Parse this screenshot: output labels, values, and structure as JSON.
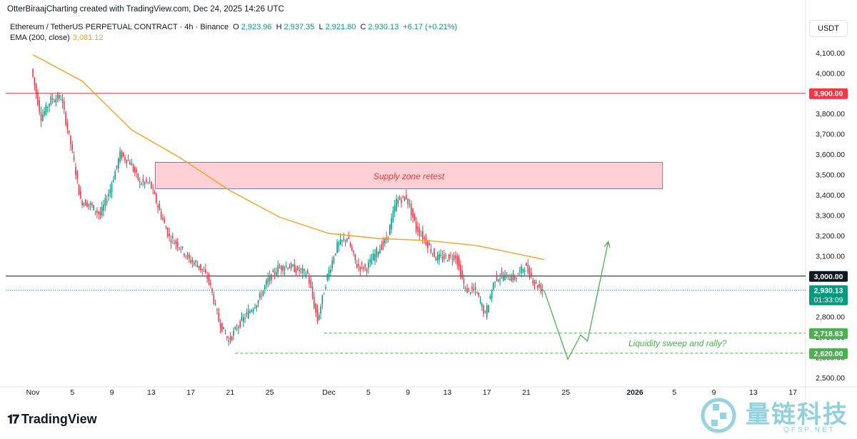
{
  "header": {
    "credit": "OtterBiraajCharting created with TradingView.com, Dec 24, 2025 14:26 UTC"
  },
  "legend": {
    "symbol": "Ethereum / TetherUS PERPETUAL CONTRACT · 4h · Binance",
    "open_label": "O",
    "open": "2,923.96",
    "high_label": "H",
    "high": "2,937.35",
    "low_label": "L",
    "low": "2,921.80",
    "close_label": "C",
    "close": "2,930.13",
    "change": "+6.17 (+0.21%)",
    "ema_label": "EMA (200, close)",
    "ema_value": "3,081.12"
  },
  "toolbar": {
    "currency": "USDT"
  },
  "footer": {
    "brand": "TradingView"
  },
  "watermark": {
    "name": "量链科技",
    "site": "QFSP.NET"
  },
  "colors": {
    "up": "#089981",
    "down": "#f23645",
    "ema": "#f7a21b",
    "level_red": "#f23645",
    "level_black": "#131722",
    "price_line": "#089981",
    "projection": "#4caf50",
    "supply_fill": "#ffcdd2",
    "supply_border": "#5c6bc0",
    "supply_text": "#e53935"
  },
  "chart_data": {
    "type": "candlestick",
    "timeframe": "4h",
    "ylim": [
      2500,
      4150
    ],
    "y_ticks": [
      "4,100.00",
      "4,000.00",
      "3,900.00",
      "3,800.00",
      "3,700.00",
      "3,600.00",
      "3,500.00",
      "3,400.00",
      "3,300.00",
      "3,200.00",
      "3,100.00",
      "3,000.00",
      "2,900.00",
      "2,800.00",
      "2,700.00",
      "2,600.00",
      "2,500.00"
    ],
    "x_ticks": [
      "Nov",
      "5",
      "9",
      "13",
      "17",
      "21",
      "25",
      "Dec",
      "5",
      "9",
      "13",
      "17",
      "21",
      "25",
      "2026",
      "5",
      "9",
      "13",
      "17"
    ],
    "x_tick_days": [
      0,
      4,
      8,
      12,
      16,
      20,
      24,
      30,
      34,
      38,
      42,
      46,
      50,
      54,
      61,
      65,
      69,
      73,
      77
    ],
    "price_path": [
      [
        0,
        4020
      ],
      [
        1,
        3780
      ],
      [
        2,
        3870
      ],
      [
        3,
        3880
      ],
      [
        4,
        3650
      ],
      [
        5,
        3370
      ],
      [
        6,
        3350
      ],
      [
        7,
        3300
      ],
      [
        8,
        3430
      ],
      [
        9,
        3600
      ],
      [
        10,
        3560
      ],
      [
        11,
        3460
      ],
      [
        12,
        3460
      ],
      [
        13,
        3320
      ],
      [
        14,
        3190
      ],
      [
        15,
        3150
      ],
      [
        16,
        3080
      ],
      [
        17,
        3050
      ],
      [
        18,
        2980
      ],
      [
        19,
        2780
      ],
      [
        20,
        2680
      ],
      [
        21,
        2760
      ],
      [
        22,
        2820
      ],
      [
        23,
        2880
      ],
      [
        24,
        2980
      ],
      [
        25,
        3040
      ],
      [
        26,
        3050
      ],
      [
        27,
        3030
      ],
      [
        28,
        3010
      ],
      [
        29,
        2780
      ],
      [
        30,
        3000
      ],
      [
        31,
        3150
      ],
      [
        32,
        3190
      ],
      [
        33,
        3050
      ],
      [
        34,
        3040
      ],
      [
        35,
        3120
      ],
      [
        36,
        3180
      ],
      [
        37,
        3370
      ],
      [
        38,
        3390
      ],
      [
        39,
        3240
      ],
      [
        40,
        3170
      ],
      [
        41,
        3090
      ],
      [
        42,
        3090
      ],
      [
        43,
        3100
      ],
      [
        44,
        2930
      ],
      [
        45,
        2930
      ],
      [
        46,
        2810
      ],
      [
        47,
        2990
      ],
      [
        48,
        3000
      ],
      [
        49,
        2990
      ],
      [
        50,
        3050
      ],
      [
        51,
        2970
      ],
      [
        51.8,
        2930
      ]
    ],
    "series": [
      {
        "name": "EMA (200, close)",
        "values": [
          [
            0,
            4090
          ],
          [
            5,
            3960
          ],
          [
            10,
            3720
          ],
          [
            15,
            3580
          ],
          [
            20,
            3420
          ],
          [
            25,
            3290
          ],
          [
            30,
            3210
          ],
          [
            35,
            3185
          ],
          [
            40,
            3175
          ],
          [
            45,
            3150
          ],
          [
            50,
            3100
          ],
          [
            51.8,
            3081
          ]
        ]
      }
    ],
    "levels": [
      {
        "value": 3900,
        "label": "3,900.00",
        "color": "#f23645"
      },
      {
        "value": 3000,
        "label": "3,000.00",
        "color": "#131722"
      },
      {
        "value": 2930.13,
        "label": "2,930.13",
        "sublabel": "01:33:09",
        "color": "#089981",
        "style": "dotted"
      },
      {
        "value": 2718.63,
        "label": "2,718.63",
        "color": "#4caf50",
        "style": "dashed",
        "from_day": 29.5
      },
      {
        "value": 2620,
        "label": "2,620.00",
        "color": "#4caf50",
        "style": "dashed",
        "from_day": 20.5
      }
    ],
    "supply_zone": {
      "x0_day": 12.4,
      "x1_day": 63.8,
      "y_low": 3430,
      "y_high": 3560,
      "label": "Supply zone retest"
    },
    "projection": {
      "label": "Liquidity sweep and rally?",
      "path": [
        [
          51.8,
          2930
        ],
        [
          54.2,
          2590
        ],
        [
          55.5,
          2710
        ],
        [
          56.2,
          2680
        ],
        [
          58.3,
          3170
        ]
      ]
    }
  }
}
